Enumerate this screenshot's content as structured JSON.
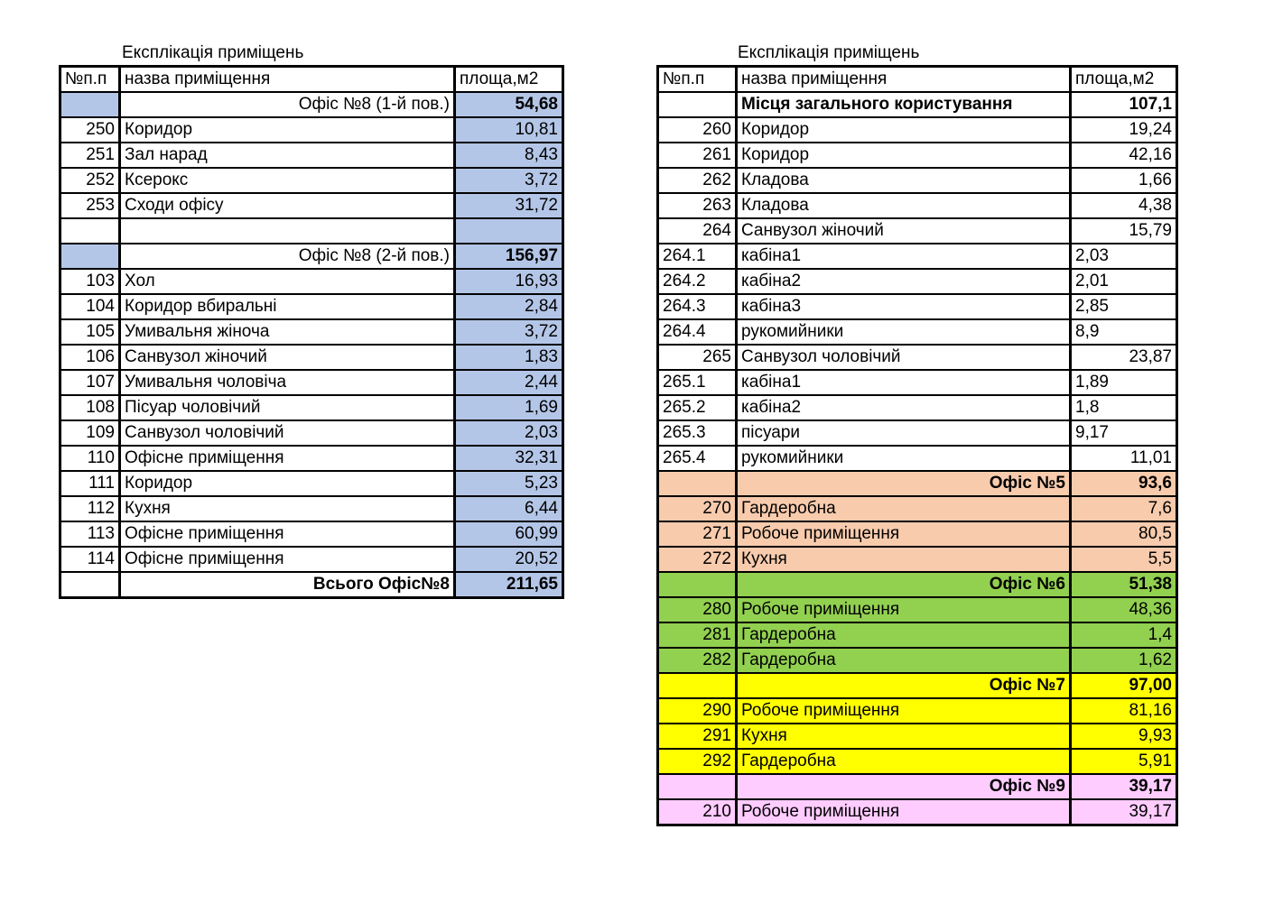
{
  "tables": [
    {
      "caption": "Експлікація приміщень",
      "header": [
        "№п.п",
        "назва приміщення",
        "площа,м2"
      ],
      "rows": [
        [
          "",
          "Офіс №8 (1-й пов.)",
          "54,68"
        ],
        [
          "250",
          "Коридор",
          "10,81"
        ],
        [
          "251",
          "Зал нарад",
          "8,43"
        ],
        [
          "252",
          "Ксерокс",
          "3,72"
        ],
        [
          "253",
          "Сходи офісу",
          "31,72"
        ],
        [
          "",
          "",
          ""
        ],
        [
          "",
          "Офіс №8 (2-й пов.)",
          "156,97"
        ],
        [
          "103",
          "Хол",
          "16,93"
        ],
        [
          "104",
          "Коридор вбиральні",
          "2,84"
        ],
        [
          "105",
          "Умивальня жіноча",
          "3,72"
        ],
        [
          "106",
          "Санвузол жіночий",
          "1,83"
        ],
        [
          "107",
          "Умивальня чоловіча",
          "2,44"
        ],
        [
          "108",
          "Пісуар чоловічий",
          "1,69"
        ],
        [
          "109",
          "Санвузол чоловічий",
          "2,03"
        ],
        [
          "110",
          "Офісне приміщення",
          "32,31"
        ],
        [
          "111",
          "Коридор",
          "5,23"
        ],
        [
          "112",
          "Кухня",
          "6,44"
        ],
        [
          "113",
          "Офісне приміщення",
          "60,99"
        ],
        [
          "114",
          "Офісне приміщення",
          "20,52"
        ],
        [
          "",
          "Всього Офіс№8",
          "211,65"
        ]
      ]
    },
    {
      "caption": "Експлікація приміщень",
      "header": [
        "№п.п",
        "назва приміщення",
        "площа,м2"
      ],
      "rows": [
        [
          "",
          "Місця загального користування",
          "107,1"
        ],
        [
          "260",
          "Коридор",
          "19,24"
        ],
        [
          "261",
          "Коридор",
          "42,16"
        ],
        [
          "262",
          "Кладова",
          "1,66"
        ],
        [
          "263",
          "Кладова",
          "4,38"
        ],
        [
          "264",
          "Санвузол жіночий",
          "15,79"
        ],
        [
          "264.1",
          "кабіна1",
          "2,03"
        ],
        [
          "264.2",
          "кабіна2",
          "2,01"
        ],
        [
          "264.3",
          "кабіна3",
          "2,85"
        ],
        [
          "264.4",
          "рукомийники",
          "8,9"
        ],
        [
          "265",
          "Санвузол чоловічий",
          "23,87"
        ],
        [
          "265.1",
          "кабіна1",
          "1,89"
        ],
        [
          "265.2",
          "кабіна2",
          "1,8"
        ],
        [
          "265.3",
          "пісуари",
          "9,17"
        ],
        [
          "265.4",
          "рукомийники",
          "11,01"
        ],
        [
          "",
          "Офіс №5",
          "93,6"
        ],
        [
          "270",
          "Гардеробна",
          "7,6"
        ],
        [
          "271",
          "Робоче приміщення",
          "80,5"
        ],
        [
          "272",
          "Кухня",
          "5,5"
        ],
        [
          "",
          "Офіс №6",
          "51,38"
        ],
        [
          "280",
          "Робоче приміщення",
          "48,36"
        ],
        [
          "281",
          "Гардеробна",
          "1,4"
        ],
        [
          "282",
          "Гардеробна",
          "1,62"
        ],
        [
          "",
          "Офіс №7",
          "97,00"
        ],
        [
          "290",
          "Робоче приміщення",
          "81,16"
        ],
        [
          "291",
          "Кухня",
          "9,93"
        ],
        [
          "292",
          "Гардеробна",
          "5,91"
        ],
        [
          "",
          "Офіс №9",
          "39,17"
        ],
        [
          "210",
          "Робоче приміщення",
          "39,17"
        ]
      ]
    }
  ]
}
